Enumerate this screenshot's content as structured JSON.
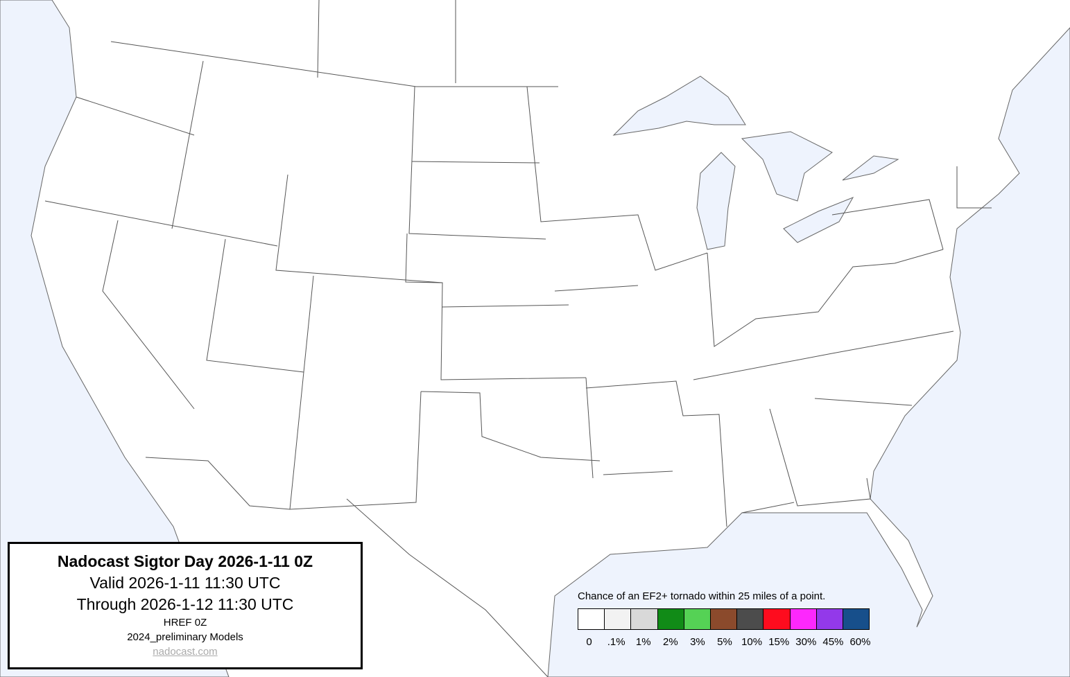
{
  "info": {
    "title": "Nadocast Sigtor Day 2026-1-11 0Z",
    "valid": "Valid 2026-1-11 11:30 UTC",
    "through": "Through 2026-1-12 11:30 UTC",
    "model": "HREF 0Z",
    "models": "2024_preliminary Models",
    "link": "nadocast.com"
  },
  "legend": {
    "caption": "Chance of an EF2+ tornado within 25 miles of a point.",
    "bins": [
      {
        "label": "0",
        "color": "#ffffff"
      },
      {
        "label": ".1%",
        "color": "#f2f2f2"
      },
      {
        "label": "1%",
        "color": "#d9d9d9"
      },
      {
        "label": "2%",
        "color": "#118b17"
      },
      {
        "label": "3%",
        "color": "#55d255"
      },
      {
        "label": "5%",
        "color": "#8b4a2c"
      },
      {
        "label": "10%",
        "color": "#4c4c4c"
      },
      {
        "label": "15%",
        "color": "#fe0c1e"
      },
      {
        "label": "30%",
        "color": "#fd28fd"
      },
      {
        "label": "45%",
        "color": "#9339ea"
      },
      {
        "label": "60%",
        "color": "#174f8b"
      }
    ]
  },
  "colors": {
    "water": "#eef3fd",
    "land": "#ffffff",
    "border": "#555555"
  }
}
